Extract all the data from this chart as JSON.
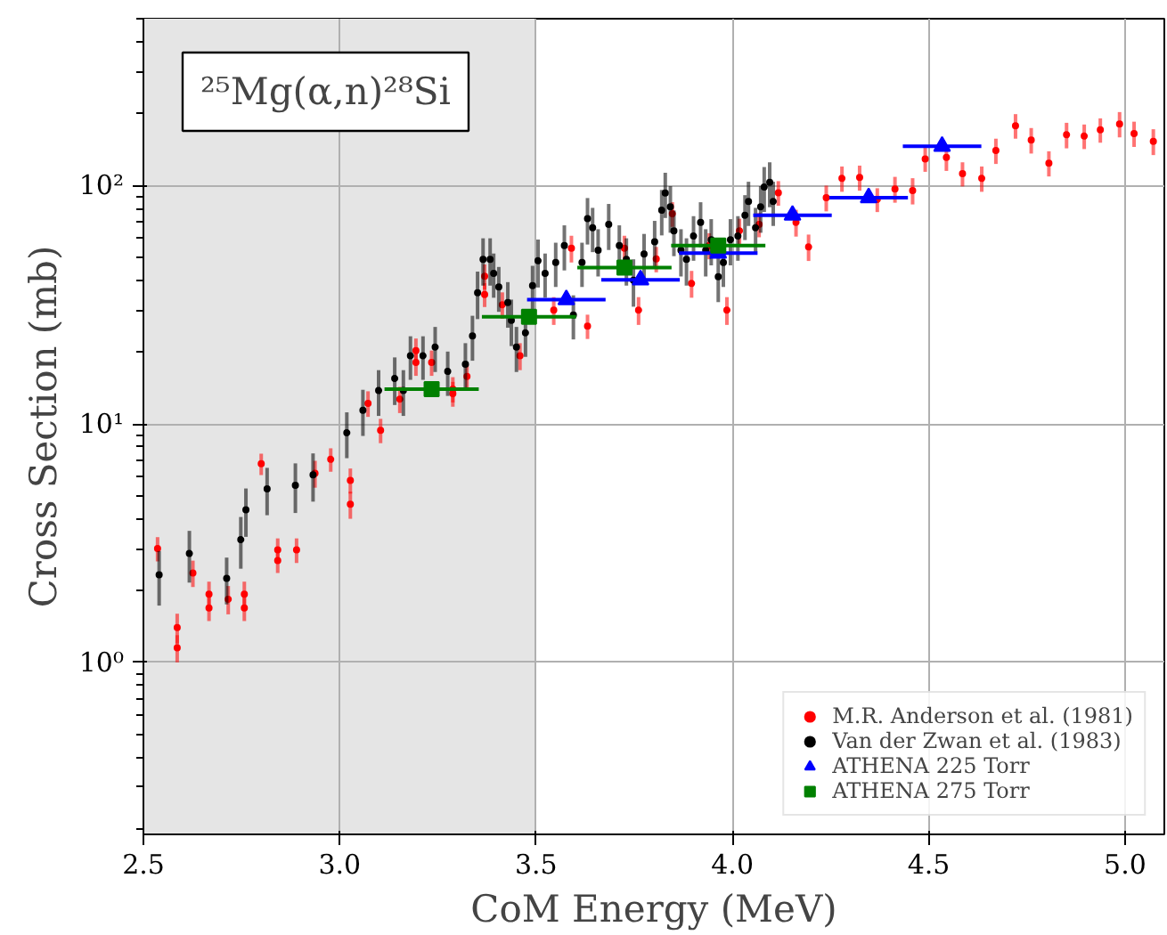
{
  "chart_data": {
    "type": "scatter",
    "xlabel": "CoM Energy (MeV)",
    "ylabel": "Cross Section (mb)",
    "annotations": [
      "²⁵Mg(α,n)²⁸Si"
    ],
    "log": "y",
    "grid": true,
    "legend": "bottom right",
    "xlim": [
      2.5,
      5.1
    ],
    "ylim": [
      0.19,
      500
    ],
    "xticks": [
      2.5,
      {
        "value": 3,
        "label": "3.0"
      },
      3.5,
      {
        "value": 4,
        "label": "4.0"
      },
      4.5,
      {
        "value": 5,
        "label": "5.0"
      }
    ],
    "yticks": [
      {
        "value": 1,
        "label": "10⁰"
      },
      {
        "value": 10,
        "label": "10¹"
      },
      {
        "value": 100,
        "label": "10²"
      }
    ],
    "bands": [
      {
        "axis": "x",
        "from": 2.5,
        "to": 3.5,
        "color": "#e5e5e5"
      }
    ],
    "series": [
      {
        "name": "M.R. Anderson et al. (1981)",
        "color": "#ff0000",
        "marker": "circle",
        "x": [
          2.536,
          2.586,
          2.586,
          2.626,
          2.667,
          2.667,
          2.716,
          2.757,
          2.757,
          2.8,
          2.842,
          2.842,
          2.89,
          2.937,
          2.977,
          3.027,
          3.027,
          3.072,
          3.104,
          3.153,
          3.194,
          3.194,
          3.234,
          3.288,
          3.288,
          3.324,
          3.369,
          3.369,
          3.414,
          3.459,
          3.545,
          3.59,
          3.631,
          3.725,
          3.761,
          3.806,
          3.847,
          3.896,
          3.941,
          3.986,
          4.018,
          4.068,
          4.117,
          4.162,
          4.194,
          4.239,
          4.279,
          4.324,
          4.369,
          4.414,
          4.459,
          4.491,
          4.545,
          4.586,
          4.635,
          4.671,
          4.721,
          4.761,
          4.806,
          4.851,
          4.896,
          4.937,
          4.986,
          5.023,
          5.072
        ],
        "values": [
          3.0,
          1.4,
          1.15,
          2.37,
          1.93,
          1.69,
          1.84,
          1.93,
          1.69,
          6.8,
          2.96,
          2.67,
          2.96,
          6.2,
          7.1,
          5.8,
          4.6,
          12.2,
          9.4,
          12.7,
          20.3,
          18.1,
          18.1,
          13.4,
          14.0,
          15.8,
          41.6,
          34.9,
          31.6,
          19.3,
          30,
          54.5,
          25.7,
          54.5,
          30,
          49.2,
          76,
          38.8,
          56,
          30,
          64.5,
          68.6,
          93.2,
          70,
          55.2,
          88.8,
          107,
          108,
          87.3,
          96.6,
          95.2,
          129,
          131,
          112,
          107,
          140,
          178,
          155,
          124,
          163,
          161,
          171,
          181,
          165,
          153
        ],
        "errors": [
          0.35,
          0.2,
          0.15,
          0.3,
          0.25,
          0.2,
          0.25,
          0.25,
          0.2,
          0.7,
          0.35,
          0.3,
          0.35,
          0.8,
          0.8,
          0.7,
          0.6,
          1.5,
          1.1,
          1.6,
          2.5,
          2.2,
          2.2,
          1.6,
          1.7,
          2,
          5,
          4,
          4,
          2.5,
          4,
          7,
          3,
          7,
          4,
          6,
          9,
          5,
          7,
          4,
          8,
          8,
          11,
          9,
          7,
          11,
          13,
          13,
          10,
          12,
          12,
          15,
          16,
          13,
          13,
          17,
          21,
          19,
          15,
          20,
          19,
          20,
          22,
          20,
          19
        ]
      },
      {
        "name": "Van der Zwan et al. (1983)",
        "color": "#000000",
        "marker": "circle",
        "x": [
          2.54,
          2.617,
          2.712,
          2.748,
          2.761,
          2.815,
          2.887,
          2.932,
          3.018,
          3.059,
          3.099,
          3.14,
          3.162,
          3.18,
          3.212,
          3.243,
          3.275,
          3.32,
          3.338,
          3.351,
          3.365,
          3.383,
          3.392,
          3.405,
          3.428,
          3.437,
          3.45,
          3.473,
          3.491,
          3.505,
          3.523,
          3.55,
          3.572,
          3.595,
          3.617,
          3.631,
          3.644,
          3.658,
          3.685,
          3.712,
          3.73,
          3.748,
          3.775,
          3.802,
          3.82,
          3.829,
          3.842,
          3.851,
          3.869,
          3.883,
          3.901,
          3.919,
          3.932,
          3.946,
          3.964,
          3.977,
          3.995,
          4.014,
          4.032,
          4.041,
          4.059,
          4.072,
          4.081,
          4.095,
          4.104
        ],
        "values": [
          2.33,
          2.86,
          2.25,
          3.27,
          4.36,
          5.34,
          5.53,
          6.12,
          9.18,
          11.4,
          13.8,
          15.5,
          13.8,
          19.3,
          19.3,
          21.0,
          16.6,
          17.8,
          23.4,
          35.5,
          49.0,
          49.0,
          42.8,
          37.5,
          32.3,
          27.2,
          21.0,
          24.1,
          38.0,
          48.3,
          42.8,
          47.5,
          56.0,
          28.6,
          47.5,
          72.5,
          66.5,
          53.5,
          68.6,
          56.0,
          49.0,
          40.0,
          51.6,
          58.0,
          78.7,
          93.0,
          81.3,
          64.5,
          53.5,
          49.0,
          61.3,
          70.0,
          53.5,
          59.2,
          41.4,
          47.5,
          59.2,
          61.3,
          75.0,
          85.6,
          66.5,
          81.3,
          98.4,
          103,
          85.6
        ],
        "errors": [
          0.6,
          0.7,
          0.5,
          0.8,
          1.0,
          1.2,
          1.3,
          1.4,
          2.0,
          2.5,
          3,
          3.5,
          3,
          4,
          4,
          4.5,
          3.5,
          4,
          5,
          8,
          11,
          11,
          9,
          8,
          7,
          6,
          4.5,
          5,
          8,
          11,
          9,
          10,
          12,
          6,
          10,
          16,
          14,
          12,
          15,
          12,
          11,
          9,
          11,
          13,
          17,
          20,
          18,
          14,
          12,
          11,
          13,
          15,
          12,
          13,
          9,
          10,
          13,
          13,
          16,
          18,
          14,
          18,
          21,
          22,
          18
        ]
      },
      {
        "name": "ATHENA 225 Torr",
        "color": "#0000ff",
        "marker": "triangle",
        "x": [
          3.577,
          3.766,
          3.964,
          4.153,
          4.347,
          4.534
        ],
        "values": [
          33.2,
          40.2,
          52.0,
          75.0,
          88.8,
          146
        ],
        "xerrors": [
          0.1,
          0.1,
          0.1,
          0.1,
          0.1,
          0.1
        ]
      },
      {
        "name": "ATHENA 275 Torr",
        "color": "#008000",
        "marker": "square",
        "x": [
          3.234,
          3.482,
          3.725,
          3.964
        ],
        "values": [
          14.0,
          28.1,
          45.2,
          56.0
        ],
        "xerrors": [
          0.12,
          0.12,
          0.12,
          0.12
        ]
      }
    ]
  }
}
